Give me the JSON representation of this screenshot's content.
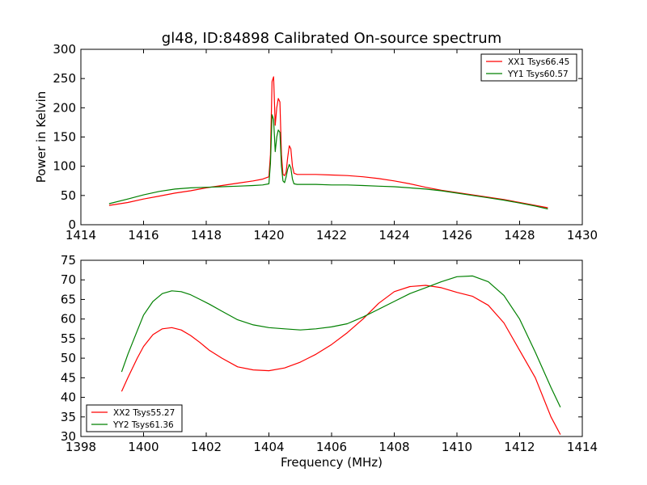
{
  "figure": {
    "title": "gl48, ID:84898 Calibrated On-source spectrum",
    "xlabel": "Frequency (MHz)"
  },
  "chart_data": [
    {
      "type": "line",
      "title": "gl48, ID:84898 Calibrated On-source spectrum",
      "xlabel": "",
      "ylabel": "Power in Kelvin",
      "xlim": [
        1414,
        1430
      ],
      "ylim": [
        0,
        300
      ],
      "xticks": [
        1414,
        1416,
        1418,
        1420,
        1422,
        1424,
        1426,
        1428,
        1430
      ],
      "yticks": [
        0,
        50,
        100,
        150,
        200,
        250,
        300
      ],
      "grid": false,
      "legend": "top-right",
      "series": [
        {
          "name": "XX1 Tsys66.45",
          "color": "#ff0000",
          "x": [
            1414.9,
            1415.5,
            1416,
            1416.5,
            1417,
            1417.5,
            1418,
            1418.5,
            1419,
            1419.5,
            1419.8,
            1420.0,
            1420.05,
            1420.1,
            1420.15,
            1420.2,
            1420.25,
            1420.3,
            1420.35,
            1420.4,
            1420.45,
            1420.5,
            1420.55,
            1420.6,
            1420.65,
            1420.7,
            1420.75,
            1420.8,
            1420.9,
            1421,
            1421.5,
            1422,
            1422.5,
            1423,
            1423.5,
            1424,
            1424.5,
            1425,
            1425.5,
            1426,
            1426.5,
            1427,
            1427.5,
            1428,
            1428.5,
            1428.9
          ],
          "y": [
            33,
            38,
            44,
            49,
            54,
            58,
            63,
            67,
            71,
            75,
            78,
            82,
            120,
            245,
            253,
            170,
            200,
            216,
            210,
            120,
            86,
            84,
            90,
            115,
            135,
            130,
            100,
            88,
            86,
            86,
            86,
            85,
            84,
            82,
            79,
            75,
            70,
            64,
            59,
            55,
            51,
            47,
            43,
            38,
            33,
            29
          ]
        },
        {
          "name": "YY1 Tsys60.57",
          "color": "#008000",
          "x": [
            1414.9,
            1415.5,
            1416,
            1416.5,
            1417,
            1417.5,
            1418,
            1418.5,
            1419,
            1419.5,
            1419.8,
            1420.0,
            1420.05,
            1420.1,
            1420.15,
            1420.2,
            1420.25,
            1420.3,
            1420.35,
            1420.4,
            1420.45,
            1420.5,
            1420.55,
            1420.6,
            1420.65,
            1420.7,
            1420.75,
            1420.8,
            1420.9,
            1421,
            1421.5,
            1422,
            1422.5,
            1423,
            1423.5,
            1424,
            1424.5,
            1425,
            1425.5,
            1426,
            1426.5,
            1427,
            1427.5,
            1428,
            1428.5,
            1428.9
          ],
          "y": [
            36,
            44,
            51,
            57,
            61,
            63,
            64,
            65,
            66,
            67,
            68,
            70,
            105,
            188,
            180,
            125,
            150,
            162,
            158,
            100,
            75,
            72,
            82,
            95,
            103,
            97,
            78,
            70,
            69,
            69,
            69,
            68,
            68,
            67,
            66,
            65,
            63,
            61,
            58,
            54,
            50,
            46,
            42,
            37,
            32,
            27
          ]
        }
      ]
    },
    {
      "type": "line",
      "title": "",
      "xlabel": "Frequency (MHz)",
      "ylabel": "",
      "xlim": [
        1398,
        1414
      ],
      "ylim": [
        30,
        75
      ],
      "xticks": [
        1398,
        1400,
        1402,
        1404,
        1406,
        1408,
        1410,
        1412,
        1414
      ],
      "yticks": [
        30,
        35,
        40,
        45,
        50,
        55,
        60,
        65,
        70,
        75
      ],
      "grid": false,
      "legend": "bottom-left",
      "series": [
        {
          "name": "XX2 Tsys55.27",
          "color": "#ff0000",
          "x": [
            1399.3,
            1399.5,
            1399.8,
            1400,
            1400.3,
            1400.6,
            1400.9,
            1401.2,
            1401.5,
            1401.8,
            1402.1,
            1402.5,
            1403,
            1403.5,
            1404,
            1404.5,
            1405,
            1405.5,
            1406,
            1406.5,
            1407,
            1407.5,
            1408,
            1408.5,
            1409,
            1409.5,
            1410,
            1410.5,
            1411,
            1411.5,
            1412,
            1412.5,
            1413,
            1413.3
          ],
          "y": [
            41.5,
            45,
            50,
            53,
            56,
            57.5,
            57.8,
            57.2,
            55.8,
            54,
            52,
            50,
            47.8,
            47,
            46.8,
            47.5,
            49,
            51,
            53.5,
            56.5,
            60,
            64,
            67,
            68.3,
            68.6,
            68,
            66.8,
            65.8,
            63.5,
            59,
            52,
            45,
            35,
            30.5
          ]
        },
        {
          "name": "YY2 Tsys61.36",
          "color": "#008000",
          "x": [
            1399.3,
            1399.5,
            1399.8,
            1400,
            1400.3,
            1400.6,
            1400.9,
            1401.2,
            1401.5,
            1401.8,
            1402.1,
            1402.5,
            1403,
            1403.5,
            1404,
            1404.5,
            1405,
            1405.5,
            1406,
            1406.5,
            1407,
            1407.5,
            1408,
            1408.5,
            1409,
            1409.5,
            1410,
            1410.5,
            1411,
            1411.5,
            1412,
            1412.5,
            1413,
            1413.3
          ],
          "y": [
            46.5,
            51,
            57,
            61,
            64.5,
            66.5,
            67.2,
            67,
            66.2,
            65,
            63.8,
            62,
            59.8,
            58.5,
            57.8,
            57.5,
            57.2,
            57.5,
            58,
            58.8,
            60.5,
            62.5,
            64.5,
            66.5,
            68,
            69.5,
            70.8,
            71,
            69.5,
            66,
            60,
            51.5,
            42.5,
            37.5
          ]
        }
      ]
    }
  ]
}
